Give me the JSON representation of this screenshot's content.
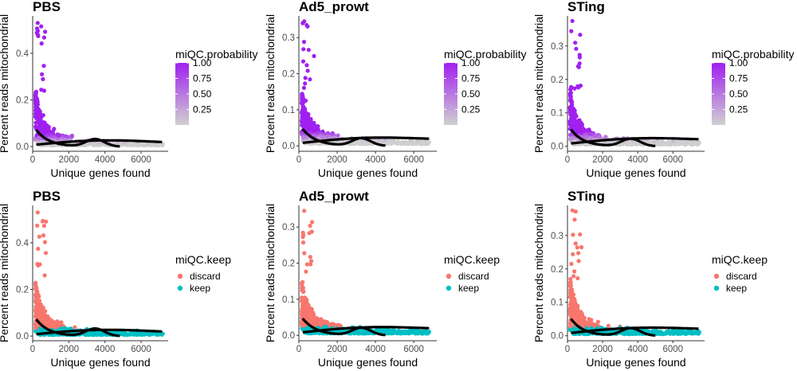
{
  "colors": {
    "prob_high": "#a020f0",
    "prob_low": "#cfcfcf",
    "discard": "#f8766d",
    "keep": "#00bfc4",
    "fit_line": "#000000"
  },
  "chart_data": [
    {
      "type": "scatter",
      "title": "PBS",
      "xlabel": "Unique genes found",
      "ylabel": "Percent reads mitochondrial",
      "color_by": "probability",
      "legend_title": "miQC.probability",
      "legend_labels": [
        "1.00",
        "0.75",
        "0.50",
        "0.25"
      ],
      "xlim": [
        0,
        7500
      ],
      "ylim": [
        -0.02,
        0.56
      ],
      "xticks": [
        0,
        2000,
        4000,
        6000
      ],
      "yticks": [
        0.0,
        0.2,
        0.4
      ],
      "ytick_labels": [
        "0.0",
        "0.2",
        "0.4"
      ],
      "xmax_data": 7200,
      "ymax_data": 0.53
    },
    {
      "type": "scatter",
      "title": "Ad5_prowt",
      "xlabel": "Unique genes found",
      "ylabel": "Percent reads mitochondrial",
      "color_by": "probability",
      "legend_title": "miQC.probability",
      "legend_labels": [
        "1.00",
        "0.75",
        "0.50",
        "0.25"
      ],
      "xlim": [
        0,
        7200
      ],
      "ylim": [
        -0.015,
        0.36
      ],
      "xticks": [
        0,
        2000,
        4000,
        6000
      ],
      "yticks": [
        0.0,
        0.1,
        0.2,
        0.3
      ],
      "ytick_labels": [
        "0.0",
        "0.1",
        "0.2",
        "0.3"
      ],
      "xmax_data": 6800,
      "ymax_data": 0.345
    },
    {
      "type": "scatter",
      "title": "STing",
      "xlabel": "Unique genes found",
      "ylabel": "Percent reads mitochondrial",
      "color_by": "probability",
      "legend_title": "miQC.probability",
      "legend_labels": [
        "1.00",
        "0.75",
        "0.50",
        "0.25"
      ],
      "xlim": [
        0,
        7800
      ],
      "ylim": [
        -0.015,
        0.39
      ],
      "xticks": [
        0,
        2000,
        4000,
        6000
      ],
      "yticks": [
        0.0,
        0.1,
        0.2,
        0.3
      ],
      "ytick_labels": [
        "0.0",
        "0.1",
        "0.2",
        "0.3"
      ],
      "xmax_data": 7500,
      "ymax_data": 0.375
    },
    {
      "type": "scatter",
      "title": "PBS",
      "xlabel": "Unique genes found",
      "ylabel": "Percent reads mitochondrial",
      "color_by": "keep",
      "legend_title": "miQC.keep",
      "legend_labels": [
        "discard",
        "keep"
      ],
      "xlim": [
        0,
        7500
      ],
      "ylim": [
        -0.02,
        0.56
      ],
      "xticks": [
        0,
        2000,
        4000,
        6000
      ],
      "yticks": [
        0.0,
        0.2,
        0.4
      ],
      "ytick_labels": [
        "0.0",
        "0.2",
        "0.4"
      ],
      "xmax_data": 7200,
      "ymax_data": 0.53
    },
    {
      "type": "scatter",
      "title": "Ad5_prowt",
      "xlabel": "Unique genes found",
      "ylabel": "Percent reads mitochondrial",
      "color_by": "keep",
      "legend_title": "miQC.keep",
      "legend_labels": [
        "discard",
        "keep"
      ],
      "xlim": [
        0,
        7200
      ],
      "ylim": [
        -0.015,
        0.36
      ],
      "xticks": [
        0,
        2000,
        4000,
        6000
      ],
      "yticks": [
        0.0,
        0.1,
        0.2,
        0.3
      ],
      "ytick_labels": [
        "0.0",
        "0.1",
        "0.2",
        "0.3"
      ],
      "xmax_data": 6800,
      "ymax_data": 0.345
    },
    {
      "type": "scatter",
      "title": "STing",
      "xlabel": "Unique genes found",
      "ylabel": "Percent reads mitochondrial",
      "color_by": "keep",
      "legend_title": "miQC.keep",
      "legend_labels": [
        "discard",
        "keep"
      ],
      "xlim": [
        0,
        7800
      ],
      "ylim": [
        -0.015,
        0.39
      ],
      "xticks": [
        0,
        2000,
        4000,
        6000
      ],
      "yticks": [
        0.0,
        0.1,
        0.2,
        0.3
      ],
      "ytick_labels": [
        "0.0",
        "0.1",
        "0.2",
        "0.3"
      ],
      "xmax_data": 7500,
      "ymax_data": 0.375
    }
  ]
}
